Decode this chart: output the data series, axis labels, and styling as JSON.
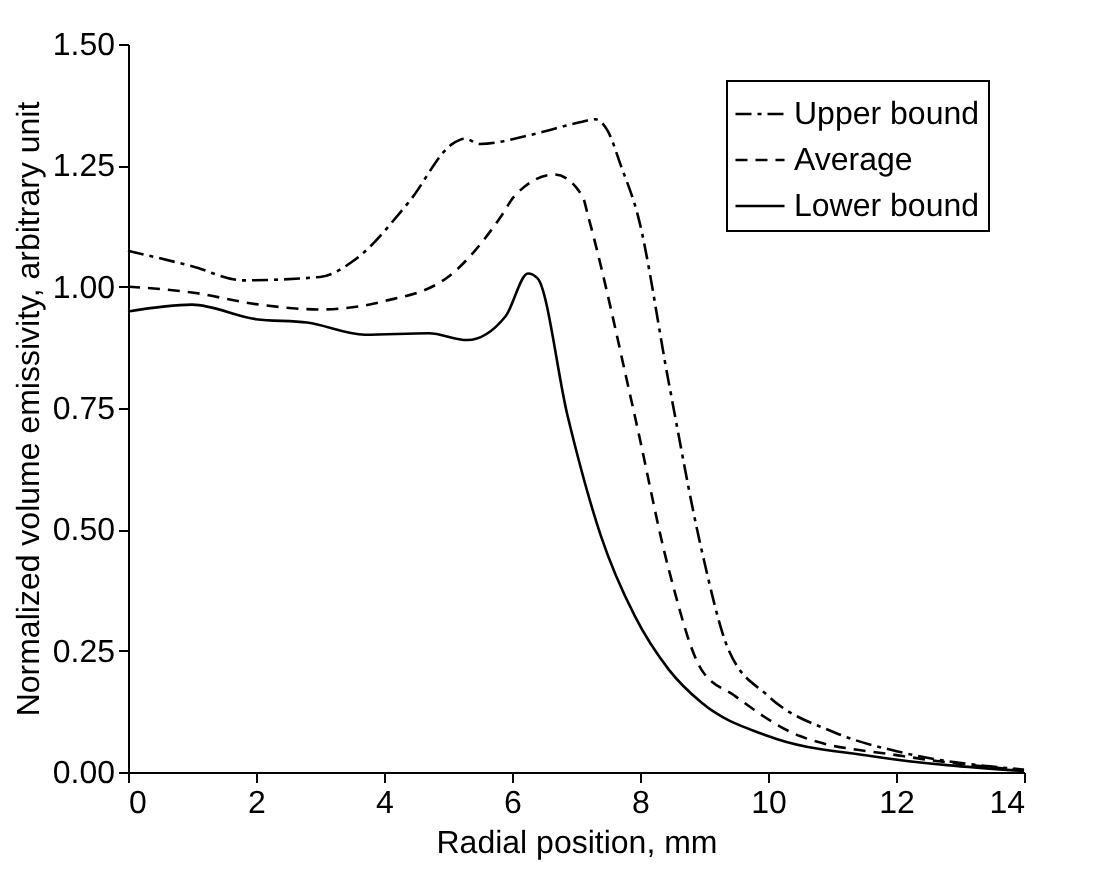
{
  "chart_data": {
    "type": "line",
    "xlabel": "Radial position, mm",
    "ylabel": "Normalized volume emissivity, arbitrary unit",
    "xlim": [
      0,
      14
    ],
    "xticks": [
      0,
      2,
      4,
      6,
      8,
      10,
      12,
      14
    ],
    "ylim": [
      0,
      1.5
    ],
    "yticks": [
      {
        "value": 0,
        "label": "0.00"
      },
      {
        "value": 0.25,
        "label": "0.25"
      },
      {
        "value": 0.5,
        "label": "0.50"
      },
      {
        "value": 0.75,
        "label": "0.75"
      },
      {
        "value": 1,
        "label": "1.00"
      },
      {
        "value": 1.25,
        "label": "1.25"
      },
      {
        "value": 1.5,
        "label": "1.50"
      }
    ],
    "grid": false,
    "legend": "top right",
    "marker": "none",
    "series": [
      {
        "name": "Upper bound",
        "color": "#000000",
        "line_style": "dashdot",
        "x": [
          0,
          1,
          1.8,
          3,
          3.55,
          4.38,
          5.1,
          5.26,
          5.5,
          6.3,
          7.1,
          7.3,
          7.5,
          7.7,
          7.97,
          8.45,
          8.96,
          9.38,
          10.0,
          11.05,
          12.1,
          14
        ],
        "values": [
          1.074,
          1.042,
          1.013,
          1.02,
          1.056,
          1.173,
          1.297,
          1.305,
          1.294,
          1.313,
          1.34,
          1.345,
          1.32,
          1.25,
          1.145,
          0.802,
          0.459,
          0.253,
          0.157,
          0.081,
          0.04,
          0.005
        ]
      },
      {
        "name": "Average",
        "color": "#000000",
        "line_style": "dashed",
        "x": [
          0,
          1,
          2,
          3,
          4,
          5,
          5.83,
          6.04,
          6.67,
          7.1,
          7.19,
          7.92,
          8.45,
          8.96,
          9.48,
          10.5,
          12.1,
          14
        ],
        "values": [
          1.0,
          0.988,
          0.964,
          0.953,
          0.97,
          1.02,
          1.145,
          1.187,
          1.231,
          1.187,
          1.145,
          0.733,
          0.417,
          0.211,
          0.157,
          0.074,
          0.033,
          0.003
        ]
      },
      {
        "name": "Lower bound",
        "color": "#000000",
        "line_style": "solid",
        "x": [
          0,
          1,
          2,
          2.8,
          3.7,
          4.7,
          5.3,
          5.9,
          6.25,
          6.4,
          6.87,
          7.39,
          7.92,
          8.45,
          8.96,
          10.0,
          11.6,
          14
        ],
        "values": [
          0.949,
          0.963,
          0.933,
          0.926,
          0.901,
          0.904,
          0.89,
          0.939,
          1.027,
          1.017,
          0.733,
          0.486,
          0.321,
          0.211,
          0.143,
          0.074,
          0.033,
          0.002
        ]
      }
    ]
  }
}
